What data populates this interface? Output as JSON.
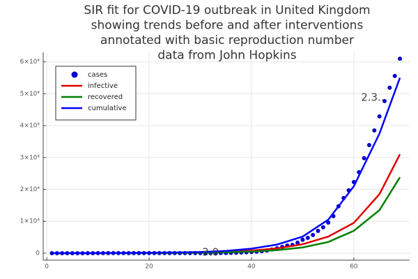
{
  "chart_data": {
    "type": "line",
    "title": [
      "SIR fit for COVID-19 outbreak in United Kingdom",
      "showing trends before and after interventions",
      "annotated with basic reproduction number",
      "data from John Hopkins"
    ],
    "xlim": [
      -0.7,
      70.9
    ],
    "ylim": [
      -2200,
      63000
    ],
    "xticks": [
      0,
      20,
      40,
      60
    ],
    "yticks": [
      0,
      {
        "value": 10000,
        "label": "1×10⁴"
      },
      {
        "value": 20000,
        "label": "2×10⁴"
      },
      {
        "value": 30000,
        "label": "3×10⁴"
      },
      {
        "value": 40000,
        "label": "4×10⁴"
      },
      {
        "value": 50000,
        "label": "5×10⁴"
      },
      {
        "value": 60000,
        "label": "6×10⁴"
      }
    ],
    "grid": true,
    "legend": "top-left",
    "series": [
      {
        "name": "cases",
        "kind": "scatter",
        "color": "#0000cd",
        "x": [
          1,
          2,
          3,
          4,
          5,
          6,
          7,
          8,
          9,
          10,
          11,
          12,
          13,
          14,
          15,
          16,
          17,
          18,
          19,
          20,
          21,
          22,
          23,
          24,
          25,
          26,
          27,
          28,
          29,
          30,
          31,
          32,
          33,
          34,
          35,
          36,
          37,
          38,
          39,
          40,
          41,
          42,
          43,
          44,
          45,
          46,
          47,
          48,
          49,
          50,
          51,
          52,
          53,
          54,
          55,
          56,
          57,
          58,
          59,
          60,
          61,
          62,
          63,
          64,
          65,
          66,
          67,
          68,
          69
        ],
        "values": [
          0,
          0,
          0,
          0,
          0,
          0,
          0,
          0,
          0,
          2,
          2,
          2,
          2,
          2,
          2,
          2,
          2,
          2,
          2,
          2,
          2,
          3,
          8,
          9,
          9,
          9,
          9,
          9,
          13,
          13,
          20,
          23,
          35,
          40,
          50,
          90,
          120,
          200,
          270,
          380,
          460,
          590,
          800,
          1150,
          1550,
          1950,
          2400,
          2600,
          3300,
          4200,
          4800,
          5700,
          7000,
          8100,
          9600,
          11600,
          14700,
          17300,
          19700,
          22300,
          25400,
          29800,
          33900,
          38500,
          42900,
          47700,
          51900,
          55600,
          61000
        ]
      },
      {
        "name": "infective",
        "kind": "line",
        "color": "#e00000",
        "x": [
          1,
          5,
          10,
          15,
          20,
          25,
          30,
          35,
          40,
          45,
          50,
          55,
          60,
          65,
          69
        ],
        "values": [
          3,
          7,
          18,
          35,
          65,
          120,
          210,
          400,
          800,
          1500,
          2800,
          5200,
          9500,
          18500,
          31000
        ]
      },
      {
        "name": "recovered",
        "kind": "line",
        "color": "#007f00",
        "x": [
          1,
          5,
          10,
          15,
          20,
          25,
          30,
          35,
          40,
          45,
          50,
          55,
          60,
          65,
          69
        ],
        "values": [
          1,
          4,
          10,
          22,
          40,
          75,
          130,
          250,
          500,
          950,
          1800,
          3500,
          7000,
          13500,
          23800
        ]
      },
      {
        "name": "cumulative",
        "kind": "line",
        "color": "#0000ff",
        "x": [
          1,
          5,
          10,
          15,
          20,
          25,
          30,
          35,
          40,
          45,
          50,
          55,
          60,
          65,
          69
        ],
        "values": [
          5,
          12,
          30,
          60,
          110,
          200,
          350,
          700,
          1400,
          2700,
          5200,
          10500,
          21000,
          37500,
          55000
        ]
      }
    ],
    "annotations": [
      {
        "text": "3.0",
        "x": 32,
        "y": 200
      },
      {
        "text": "2.3...",
        "x": 64,
        "y": 48800
      }
    ]
  }
}
